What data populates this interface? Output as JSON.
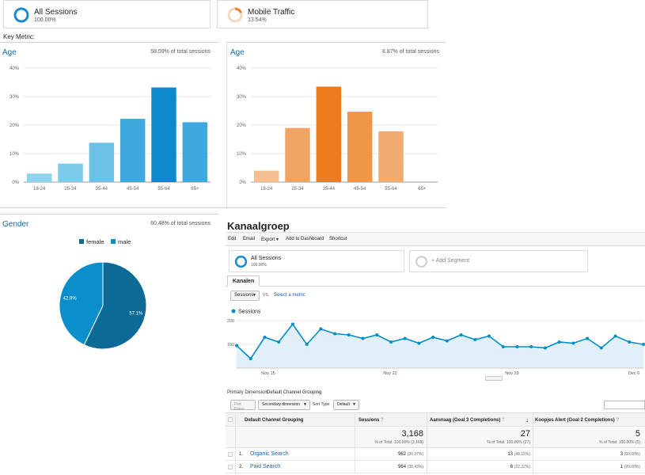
{
  "segments": [
    {
      "title": "All Sessions",
      "pct": "100.00%"
    },
    {
      "title": "Mobile Traffic",
      "pct": "13.54%"
    }
  ],
  "key_metric": "Key Metric:",
  "age_panels": [
    {
      "title": "Age",
      "subtitle": "58.59% of total sessions"
    },
    {
      "title": "Age",
      "subtitle": "8.87% of total sessions"
    }
  ],
  "gender_panel": {
    "title": "Gender",
    "subtitle": "60.48% of total sessions"
  },
  "kanaal": {
    "title": "Kanaalgroep",
    "toolbar": [
      "Edit",
      "Email",
      "Export ▾",
      "Add to Dashboard",
      "Shortcut"
    ],
    "segment": {
      "title": "All Sessions",
      "pct": "100.00%"
    },
    "add_segment": "+ Add Segment",
    "tab": "Kanalen",
    "metric_select": "Sessions",
    "vs": "VS.",
    "select_metric": "Select a metric",
    "legend": "Sessions",
    "primary_dimension_label": "Primary Dimension:",
    "primary_dimension_value": "Default Channel Grouping",
    "plot_rows": "Plot Rows",
    "secondary_dimension": "Secondary dimension",
    "sort_type_label": "Sort Type:",
    "sort_type_value": "Default",
    "columns": [
      "Default Channel Grouping",
      "Sessions",
      "Aanvraag (Goal 3 Completions)",
      "Koopjes Alert (Goal 2 Completions)"
    ],
    "totals": [
      {
        "value": "3,168",
        "note": "% of Total: 100.00% (3,168)"
      },
      {
        "value": "27",
        "note": "% of Total: 100.00% (27)"
      },
      {
        "value": "5",
        "note": "% of Total: 100.00% (5)"
      }
    ],
    "rows": [
      {
        "num": "1.",
        "name": "Organic Search",
        "sessions": "962",
        "sessions_pct": "(30.37%)",
        "goal3": "13",
        "goal3_pct": "(48.15%)",
        "goal2": "3",
        "goal2_pct": "(60.00%)"
      },
      {
        "num": "2.",
        "name": "Paid Search",
        "sessions": "964",
        "sessions_pct": "(30.43%)",
        "goal3": "6",
        "goal3_pct": "(22.22%)",
        "goal2": "1",
        "goal2_pct": "(20.00%)"
      }
    ]
  },
  "chart_data": [
    {
      "type": "bar",
      "title": "Age",
      "categories": [
        "18-24",
        "25-34",
        "35-44",
        "45-54",
        "55-64",
        "65+"
      ],
      "values": [
        3,
        6.5,
        13.8,
        22.2,
        33.2,
        21
      ],
      "yticks": [
        "0%",
        "10%",
        "20%",
        "30%",
        "40%"
      ],
      "ylim": [
        0,
        40
      ],
      "colors": [
        "#8dd3ef",
        "#7ccbeb",
        "#6bc1e6",
        "#3fa8dc",
        "#0d8acd",
        "#3fa8dc"
      ]
    },
    {
      "type": "bar",
      "title": "Age",
      "categories": [
        "18-24",
        "25-34",
        "35-44",
        "45-54",
        "55-64",
        "65+"
      ],
      "values": [
        4,
        19,
        33.5,
        24.7,
        17.8,
        0
      ],
      "yticks": [
        "0%",
        "10%",
        "20%",
        "30%",
        "40%"
      ],
      "ylim": [
        0,
        40
      ],
      "colors": [
        "#f5c08f",
        "#f0a464",
        "#ec7c1e",
        "#ef9648",
        "#f2ab70",
        "#f2ab70"
      ]
    },
    {
      "type": "pie",
      "title": "Gender",
      "legend": [
        "female",
        "male"
      ],
      "values": [
        57.1,
        42.9
      ],
      "labels": [
        "57.1%",
        "42.9%"
      ],
      "colors": [
        "#0c6a96",
        "#0a8fcc"
      ]
    },
    {
      "type": "line",
      "series": [
        {
          "name": "Sessions",
          "values": [
            95,
            40,
            130,
            110,
            185,
            100,
            165,
            145,
            140,
            125,
            140,
            110,
            125,
            105,
            130,
            115,
            140,
            120,
            135,
            90,
            90,
            90,
            85,
            110,
            105,
            125,
            85,
            135,
            110,
            100
          ]
        }
      ],
      "ylim": [
        0,
        200
      ],
      "yticks": [
        "100",
        "200"
      ],
      "xticks": [
        "Nov 15",
        "Nov 22",
        "Nov 29",
        "Dec 6"
      ]
    }
  ]
}
